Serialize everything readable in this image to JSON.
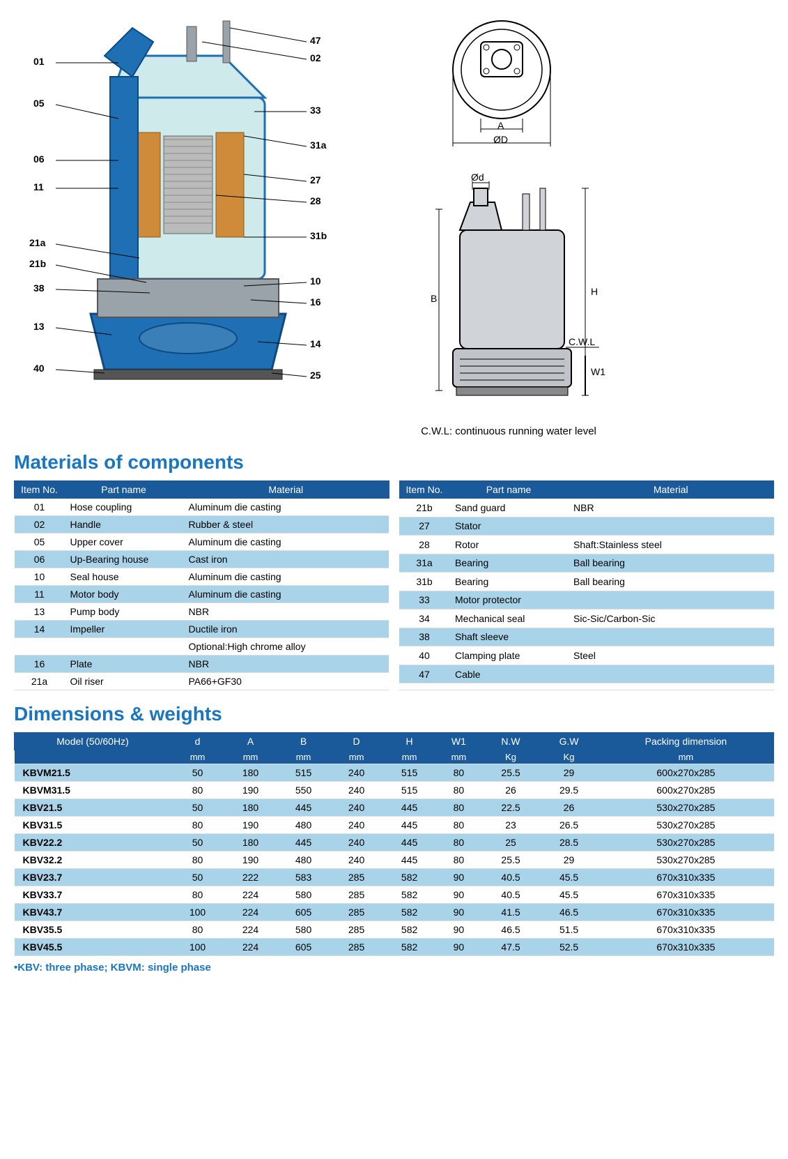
{
  "diagram_callouts_left": [
    "01",
    "05",
    "06",
    "11",
    "21a",
    "21b",
    "38",
    "13",
    "40"
  ],
  "diagram_callouts_right": [
    "47",
    "02",
    "33",
    "31a",
    "27",
    "28",
    "31b",
    "10",
    "16",
    "14",
    "25"
  ],
  "dim_labels": {
    "A": "A",
    "OD": "ØD",
    "od": "Ød",
    "B": "B",
    "H": "H",
    "W1": "W1",
    "CWL": "C.W.L"
  },
  "cwl_note": "C.W.L: continuous running water level",
  "sections": {
    "materials_title": "Materials of components",
    "dimensions_title": "Dimensions & weights"
  },
  "materials_headers": [
    "Item No.",
    "Part name",
    "Material"
  ],
  "materials_left": [
    {
      "no": "01",
      "part": "Hose coupling",
      "mat": "Aluminum die casting"
    },
    {
      "no": "02",
      "part": "Handle",
      "mat": "Rubber & steel"
    },
    {
      "no": "05",
      "part": "Upper cover",
      "mat": "Aluminum die casting"
    },
    {
      "no": "06",
      "part": "Up-Bearing house",
      "mat": "Cast iron"
    },
    {
      "no": "10",
      "part": "Seal house",
      "mat": "Aluminum die casting"
    },
    {
      "no": "11",
      "part": "Motor body",
      "mat": "Aluminum die casting"
    },
    {
      "no": "13",
      "part": "Pump body",
      "mat": "NBR"
    },
    {
      "no": "14",
      "part": "Impeller",
      "mat": "Ductile iron"
    },
    {
      "no": "",
      "part": "",
      "mat": "Optional:High chrome alloy"
    },
    {
      "no": "16",
      "part": "Plate",
      "mat": "NBR"
    },
    {
      "no": "21a",
      "part": "Oil riser",
      "mat": "PA66+GF30"
    }
  ],
  "materials_right": [
    {
      "no": "21b",
      "part": "Sand guard",
      "mat": "NBR"
    },
    {
      "no": "27",
      "part": "Stator",
      "mat": ""
    },
    {
      "no": "28",
      "part": "Rotor",
      "mat": "Shaft:Stainless steel"
    },
    {
      "no": "31a",
      "part": "Bearing",
      "mat": "Ball bearing"
    },
    {
      "no": "31b",
      "part": "Bearing",
      "mat": "Ball bearing"
    },
    {
      "no": "33",
      "part": "Motor protector",
      "mat": ""
    },
    {
      "no": "34",
      "part": "Mechanical seal",
      "mat": "Sic-Sic/Carbon-Sic"
    },
    {
      "no": "38",
      "part": "Shaft sleeve",
      "mat": ""
    },
    {
      "no": "40",
      "part": "Clamping plate",
      "mat": "Steel"
    },
    {
      "no": "47",
      "part": "Cable",
      "mat": ""
    },
    {
      "no": "",
      "part": "",
      "mat": ""
    }
  ],
  "dims_headers": [
    "Model (50/60Hz)",
    "d",
    "A",
    "B",
    "D",
    "H",
    "W1",
    "N.W",
    "G.W",
    "Packing dimension"
  ],
  "dims_units": [
    "",
    "mm",
    "mm",
    "mm",
    "mm",
    "mm",
    "mm",
    "Kg",
    "Kg",
    "mm"
  ],
  "dims_rows": [
    [
      "KBVM21.5",
      "50",
      "180",
      "515",
      "240",
      "515",
      "80",
      "25.5",
      "29",
      "600x270x285"
    ],
    [
      "KBVM31.5",
      "80",
      "190",
      "550",
      "240",
      "515",
      "80",
      "26",
      "29.5",
      "600x270x285"
    ],
    [
      "KBV21.5",
      "50",
      "180",
      "445",
      "240",
      "445",
      "80",
      "22.5",
      "26",
      "530x270x285"
    ],
    [
      "KBV31.5",
      "80",
      "190",
      "480",
      "240",
      "445",
      "80",
      "23",
      "26.5",
      "530x270x285"
    ],
    [
      "KBV22.2",
      "50",
      "180",
      "445",
      "240",
      "445",
      "80",
      "25",
      "28.5",
      "530x270x285"
    ],
    [
      "KBV32.2",
      "80",
      "190",
      "480",
      "240",
      "445",
      "80",
      "25.5",
      "29",
      "530x270x285"
    ],
    [
      "KBV23.7",
      "50",
      "222",
      "583",
      "285",
      "582",
      "90",
      "40.5",
      "45.5",
      "670x310x335"
    ],
    [
      "KBV33.7",
      "80",
      "224",
      "580",
      "285",
      "582",
      "90",
      "40.5",
      "45.5",
      "670x310x335"
    ],
    [
      "KBV43.7",
      "100",
      "224",
      "605",
      "285",
      "582",
      "90",
      "41.5",
      "46.5",
      "670x310x335"
    ],
    [
      "KBV35.5",
      "80",
      "224",
      "580",
      "285",
      "582",
      "90",
      "46.5",
      "51.5",
      "670x310x335"
    ],
    [
      "KBV45.5",
      "100",
      "224",
      "605",
      "285",
      "582",
      "90",
      "47.5",
      "52.5",
      "670x310x335"
    ]
  ],
  "foot_note": "•KBV: three phase; KBVM: single phase",
  "colors": {
    "header_bg": "#1b5a9a",
    "row_alt": "#a8d3e8",
    "title": "#1976c1",
    "pump_blue": "#1f6fb5",
    "pump_cyan": "#cfeaea",
    "pump_copper": "#cf8a3a",
    "pump_grey": "#9aa3aa"
  }
}
